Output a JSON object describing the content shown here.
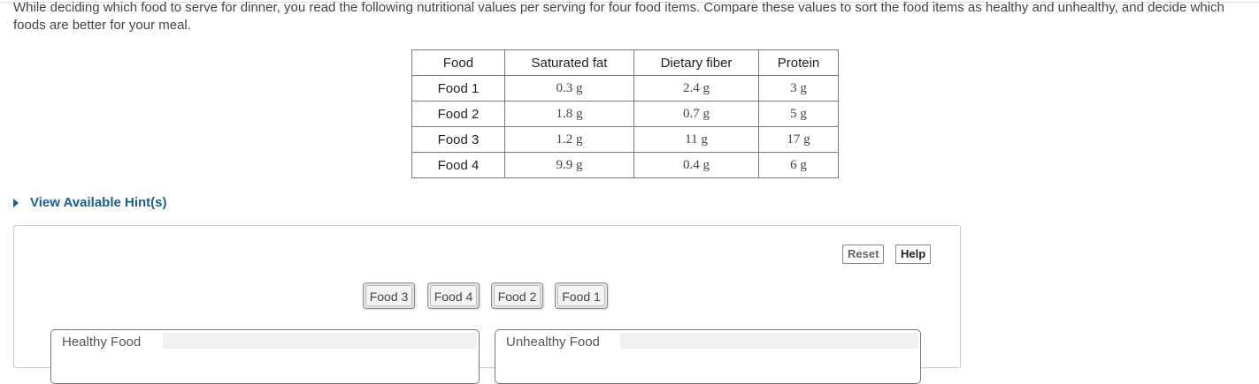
{
  "prompt": "While deciding which food to serve for dinner, you read the following nutritional values per serving for four food items. Compare these values to sort the food items as healthy and unhealthy, and decide which foods are better for your meal.",
  "table": {
    "headers": [
      "Food",
      "Saturated fat",
      "Dietary fiber",
      "Protein"
    ],
    "rows": [
      [
        "Food 1",
        "0.3 g",
        "2.4 g",
        "3 g"
      ],
      [
        "Food 2",
        "1.8 g",
        "0.7 g",
        "5 g"
      ],
      [
        "Food 3",
        "1.2 g",
        "11 g",
        "17 g"
      ],
      [
        "Food 4",
        "9.9 g",
        "0.4 g",
        "6 g"
      ]
    ]
  },
  "hint_label": "View Available Hint(s)",
  "buttons": {
    "reset": "Reset",
    "help": "Help"
  },
  "chips": [
    "Food 3",
    "Food 4",
    "Food 2",
    "Food 1"
  ],
  "bins": {
    "healthy": "Healthy Food",
    "unhealthy": "Unhealthy Food"
  },
  "colors": {
    "link": "#1a5f8a",
    "chip_bg": "#e4e4e4"
  }
}
